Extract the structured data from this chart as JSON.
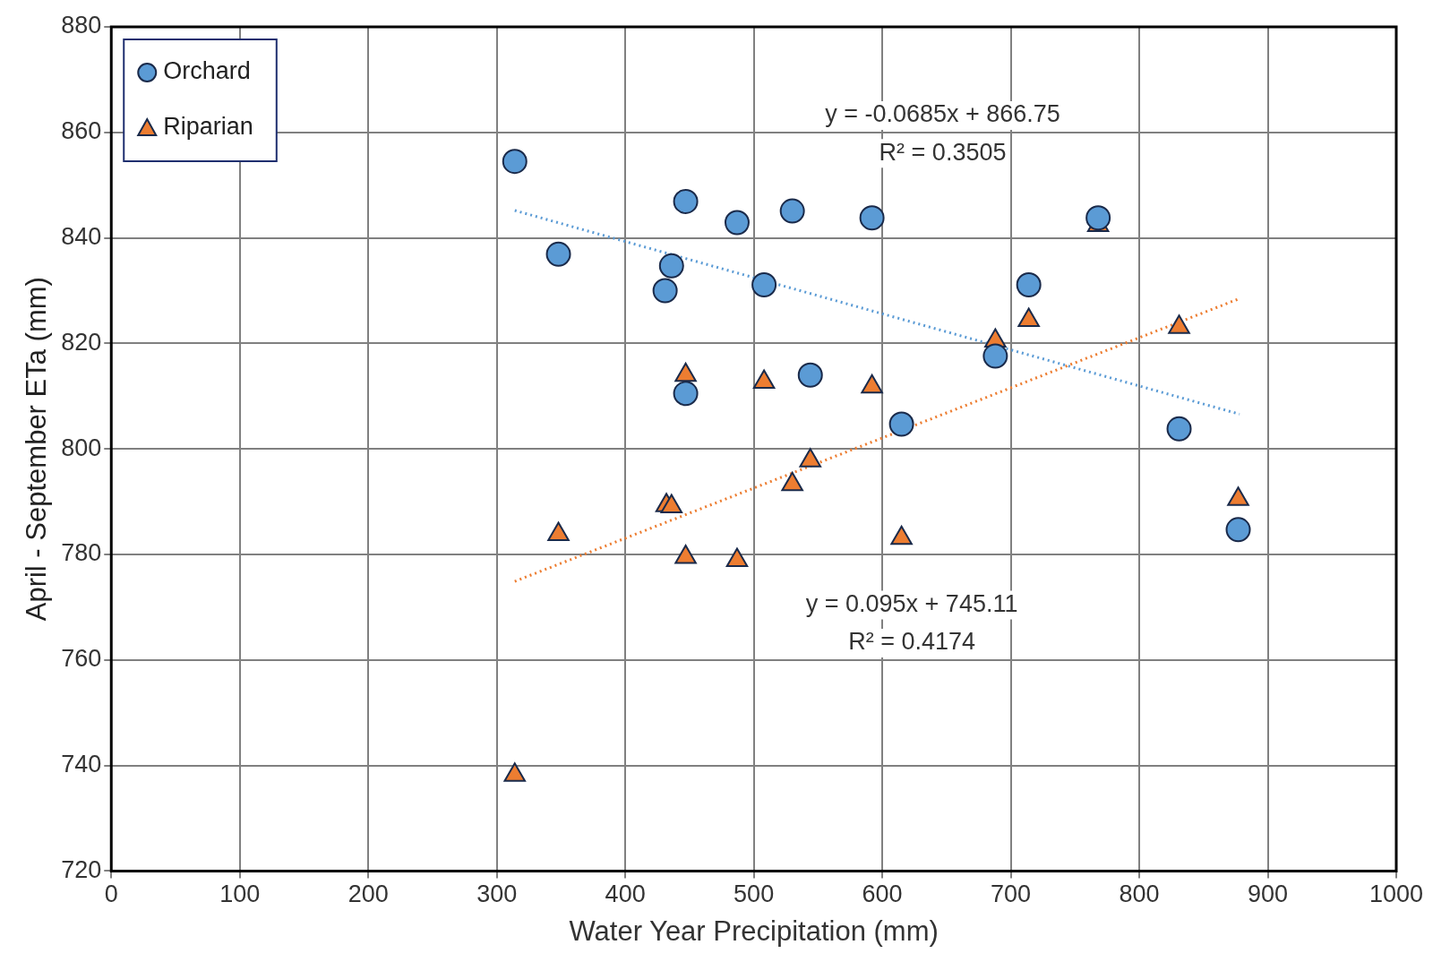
{
  "chart_data": {
    "type": "scatter",
    "xlabel": "Water Year Precipitation (mm)",
    "ylabel": "April - September ETa (mm)",
    "xlim": [
      0,
      1000
    ],
    "xticks": [
      0,
      100,
      200,
      300,
      400,
      500,
      600,
      700,
      800,
      900,
      1000
    ],
    "ylim": [
      720,
      880
    ],
    "yticks": [
      720,
      740,
      760,
      780,
      800,
      820,
      840,
      860,
      880
    ],
    "grid": true,
    "legend": "top left",
    "series": [
      {
        "name": "Orchard",
        "marker": "circle",
        "color": "#5b9bd5",
        "x": [
          314,
          348,
          447,
          436,
          431,
          487,
          508,
          530,
          592,
          447,
          544,
          615,
          688,
          714,
          768,
          831,
          877
        ],
        "values": [
          854.5,
          836.9,
          846.9,
          834.7,
          830,
          842.9,
          831.1,
          845.1,
          843.8,
          810.5,
          814,
          804.7,
          817.6,
          831.1,
          843.8,
          803.8,
          784.7
        ]
      },
      {
        "name": "Riparian",
        "marker": "triangle",
        "color": "#ed7d31",
        "x": [
          314,
          348,
          447,
          432,
          436,
          447,
          487,
          508,
          530,
          544,
          592,
          615,
          688,
          714,
          768,
          831,
          877
        ],
        "values": [
          738.2,
          783.8,
          779.5,
          789.3,
          789.1,
          814,
          778.9,
          812.7,
          793.3,
          797.8,
          811.8,
          783.1,
          820.5,
          824.4,
          842.4,
          823.1,
          790.5
        ]
      },
      {
        "type": "line",
        "line_style": "dotted",
        "color": "#5b9bd5",
        "x": [
          314,
          878
        ],
        "values": [
          845.2,
          806.6
        ]
      },
      {
        "type": "line",
        "line_style": "dotted",
        "color": "#ed7d31",
        "x": [
          314,
          878
        ],
        "values": [
          774.9,
          828.5
        ]
      }
    ],
    "annotations": [
      "y = -0.0685x + 866.75",
      "R² = 0.3505",
      "y = 0.095x + 745.11",
      "R² = 0.4174"
    ]
  }
}
